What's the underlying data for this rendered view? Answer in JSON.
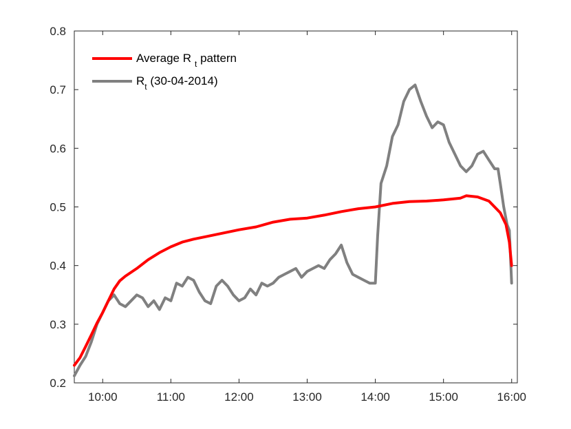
{
  "chart_data": {
    "type": "line",
    "title": "",
    "xlabel": "",
    "ylabel": "",
    "xlim": [
      "09:35",
      "16:05"
    ],
    "ylim": [
      0.2,
      0.8
    ],
    "x_ticks": [
      "10:00",
      "11:00",
      "12:00",
      "13:00",
      "14:00",
      "15:00",
      "16:00"
    ],
    "y_ticks": [
      "0.2",
      "0.3",
      "0.4",
      "0.5",
      "0.6",
      "0.7",
      "0.8"
    ],
    "grid": false,
    "legend": {
      "position": "top-left",
      "entries": [
        {
          "prefix": "Average R",
          "sub": "t",
          "suffix": " pattern",
          "color": "#ff0000"
        },
        {
          "prefix": "R",
          "sub": "t",
          "suffix": " (30-04-2014)",
          "color": "#808080"
        }
      ]
    },
    "series": [
      {
        "name": "Average R_t pattern",
        "color": "#ff0000",
        "x": [
          "09:35",
          "09:40",
          "09:45",
          "09:50",
          "09:55",
          "10:00",
          "10:05",
          "10:10",
          "10:15",
          "10:20",
          "10:30",
          "10:40",
          "10:50",
          "11:00",
          "11:10",
          "11:20",
          "11:30",
          "11:45",
          "12:00",
          "12:15",
          "12:30",
          "12:45",
          "13:00",
          "13:15",
          "13:30",
          "13:45",
          "14:00",
          "14:15",
          "14:30",
          "14:45",
          "15:00",
          "15:15",
          "15:20",
          "15:30",
          "15:40",
          "15:50",
          "15:55",
          "15:58",
          "16:00"
        ],
        "values": [
          0.23,
          0.243,
          0.262,
          0.282,
          0.302,
          0.32,
          0.34,
          0.36,
          0.374,
          0.382,
          0.395,
          0.41,
          0.422,
          0.432,
          0.44,
          0.445,
          0.449,
          0.455,
          0.461,
          0.466,
          0.474,
          0.479,
          0.481,
          0.486,
          0.492,
          0.497,
          0.5,
          0.506,
          0.509,
          0.51,
          0.512,
          0.515,
          0.519,
          0.517,
          0.51,
          0.49,
          0.47,
          0.44,
          0.4
        ]
      },
      {
        "name": "R_t (30-04-2014)",
        "color": "#808080",
        "x": [
          "09:35",
          "09:40",
          "09:45",
          "09:50",
          "09:55",
          "10:00",
          "10:05",
          "10:10",
          "10:15",
          "10:20",
          "10:25",
          "10:30",
          "10:35",
          "10:40",
          "10:45",
          "10:50",
          "10:55",
          "11:00",
          "11:05",
          "11:10",
          "11:15",
          "11:20",
          "11:25",
          "11:30",
          "11:35",
          "11:40",
          "11:45",
          "11:50",
          "11:55",
          "12:00",
          "12:05",
          "12:10",
          "12:15",
          "12:20",
          "12:25",
          "12:30",
          "12:35",
          "12:40",
          "12:45",
          "12:50",
          "12:55",
          "13:00",
          "13:05",
          "13:10",
          "13:15",
          "13:20",
          "13:25",
          "13:30",
          "13:35",
          "13:40",
          "13:45",
          "13:50",
          "13:55",
          "14:00",
          "14:02",
          "14:05",
          "14:10",
          "14:15",
          "14:20",
          "14:25",
          "14:30",
          "14:35",
          "14:40",
          "14:45",
          "14:50",
          "14:55",
          "15:00",
          "15:05",
          "15:10",
          "15:15",
          "15:20",
          "15:25",
          "15:30",
          "15:35",
          "15:40",
          "15:45",
          "15:48",
          "15:50",
          "15:53",
          "15:56",
          "15:58",
          "16:00"
        ],
        "values": [
          0.212,
          0.23,
          0.245,
          0.27,
          0.3,
          0.32,
          0.34,
          0.35,
          0.335,
          0.33,
          0.34,
          0.35,
          0.345,
          0.33,
          0.34,
          0.325,
          0.345,
          0.34,
          0.37,
          0.365,
          0.38,
          0.375,
          0.355,
          0.34,
          0.335,
          0.365,
          0.375,
          0.365,
          0.35,
          0.34,
          0.345,
          0.36,
          0.35,
          0.37,
          0.365,
          0.37,
          0.38,
          0.385,
          0.39,
          0.395,
          0.38,
          0.39,
          0.395,
          0.4,
          0.395,
          0.41,
          0.42,
          0.435,
          0.405,
          0.385,
          0.38,
          0.375,
          0.37,
          0.37,
          0.45,
          0.54,
          0.57,
          0.62,
          0.64,
          0.68,
          0.7,
          0.708,
          0.68,
          0.655,
          0.635,
          0.645,
          0.64,
          0.61,
          0.59,
          0.57,
          0.56,
          0.57,
          0.59,
          0.595,
          0.58,
          0.565,
          0.565,
          0.54,
          0.5,
          0.47,
          0.46,
          0.37
        ]
      }
    ]
  }
}
